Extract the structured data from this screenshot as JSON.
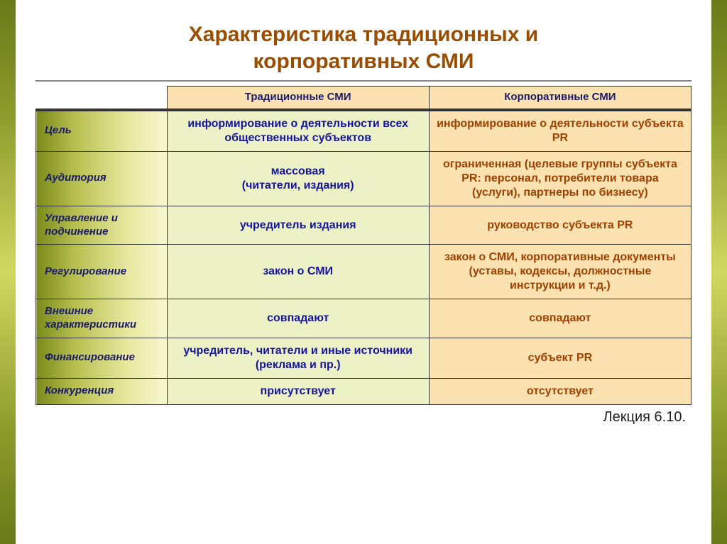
{
  "title_line1": "Характеристика традиционных и",
  "title_line2": "корпоративных СМИ",
  "columns": {
    "traditional": "Традиционные СМИ",
    "corporate": "Корпоративные СМИ"
  },
  "rows": [
    {
      "label": "Цель",
      "traditional": "информирование о деятельности всех общественных субъектов",
      "corporate": "информирование о деятельности субъекта PR"
    },
    {
      "label": "Аудитория",
      "traditional": "массовая\n(читатели, издания)",
      "corporate": "ограниченная  (целевые группы субъекта PR: персонал, потребители товара (услуги), партнеры по бизнесу)"
    },
    {
      "label": "Управление и подчинение",
      "traditional": "учредитель издания",
      "corporate": "руководство субъекта PR"
    },
    {
      "label": "Регулирование",
      "traditional": "закон о СМИ",
      "corporate": "закон о СМИ, корпоративные документы (уставы, кодексы, должностные инструкции и т.д.)"
    },
    {
      "label": "Внешние характеристики",
      "traditional": "совпадают",
      "corporate": "совпадают"
    },
    {
      "label": "Финансирование",
      "traditional": "учредитель, читатели и иные источники (реклама и пр.)",
      "corporate": "субъект PR"
    },
    {
      "label": "Конкуренция",
      "traditional": "присутствует",
      "corporate": "отсутствует"
    }
  ],
  "lecture": "Лекция 6.10.",
  "colors": {
    "title_color": "#994d00",
    "header_text": "#1a1a6a",
    "traditional_bg": "#edf2c6",
    "traditional_text": "#1414a0",
    "corporate_bg": "#fce2b0",
    "corporate_text": "#a04000",
    "row_header_gradient_start": "#7a8a1a",
    "row_header_gradient_end": "#f8f8d0",
    "side_bar_gradient": "#6a7a1a"
  },
  "fontsizes": {
    "title": 30,
    "header": 15,
    "cell": 16,
    "lecture": 20
  }
}
